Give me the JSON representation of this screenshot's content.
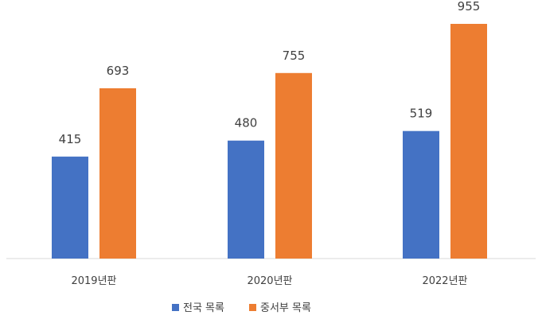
{
  "chart_data": {
    "type": "bar",
    "title": "",
    "xlabel": "",
    "ylabel": "",
    "categories": [
      "2019년판",
      "2020년판",
      "2022년판"
    ],
    "series": [
      {
        "name": "전국 목록",
        "values": [
          415,
          480,
          519
        ],
        "color": "#4472C4"
      },
      {
        "name": "중서부 목록",
        "values": [
          693,
          755,
          955
        ],
        "color": "#ED7D31"
      }
    ],
    "ylim": [
      0,
      1000
    ],
    "grid": false,
    "legend_position": "bottom",
    "data_labels": true
  }
}
